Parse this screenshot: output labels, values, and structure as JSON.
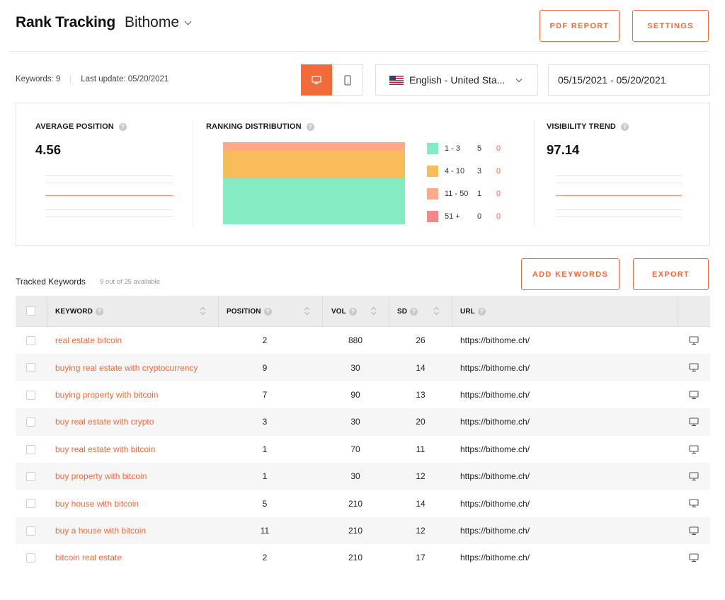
{
  "header": {
    "title": "Rank Tracking",
    "project": "Bithome",
    "pdf_report": "PDF REPORT",
    "settings": "SETTINGS"
  },
  "meta": {
    "keywords": "Keywords: 9",
    "last_update": "Last update: 05/20/2021"
  },
  "filters": {
    "device_selected": "desktop",
    "language": "English - United Sta...",
    "date_range": "05/15/2021 - 05/20/2021"
  },
  "stats": {
    "average_position": {
      "label": "AVERAGE POSITION",
      "value": "4.56"
    },
    "ranking_distribution": {
      "label": "RANKING DISTRIBUTION",
      "legend": [
        {
          "range": "1 - 3",
          "count": "5",
          "change": "0",
          "color": "#84ebc2"
        },
        {
          "range": "4 - 10",
          "count": "3",
          "change": "0",
          "color": "#f8bd5a"
        },
        {
          "range": "11 - 50",
          "count": "1",
          "change": "0",
          "color": "#fcaa87"
        },
        {
          "range": "51 +",
          "count": "0",
          "change": "0",
          "color": "#f78686"
        }
      ]
    },
    "visibility_trend": {
      "label": "VISIBILITY TREND",
      "value": "97.14"
    }
  },
  "tracked": {
    "label": "Tracked Keywords",
    "available": "9 out of 25 available",
    "add_keywords": "ADD KEYWORDS",
    "export": "EXPORT"
  },
  "table": {
    "columns": {
      "keyword": "KEYWORD",
      "position": "POSITION",
      "vol": "VOL",
      "sd": "SD",
      "url": "URL"
    },
    "rows": [
      {
        "keyword": "real estate bitcoin",
        "position": "2",
        "vol": "880",
        "sd": "26",
        "url": "https://bithome.ch/"
      },
      {
        "keyword": "buying real estate with cryptocurrency",
        "position": "9",
        "vol": "30",
        "sd": "14",
        "url": "https://bithome.ch/"
      },
      {
        "keyword": "buying property with bitcoin",
        "position": "7",
        "vol": "90",
        "sd": "13",
        "url": "https://bithome.ch/"
      },
      {
        "keyword": "buy real estate with crypto",
        "position": "3",
        "vol": "30",
        "sd": "20",
        "url": "https://bithome.ch/"
      },
      {
        "keyword": "buy real estate with bitcoin",
        "position": "1",
        "vol": "70",
        "sd": "11",
        "url": "https://bithome.ch/"
      },
      {
        "keyword": "buy property with bitcoin",
        "position": "1",
        "vol": "30",
        "sd": "12",
        "url": "https://bithome.ch/"
      },
      {
        "keyword": "buy house with bitcoin",
        "position": "5",
        "vol": "210",
        "sd": "14",
        "url": "https://bithome.ch/"
      },
      {
        "keyword": "buy a house with bitcoin",
        "position": "11",
        "vol": "210",
        "sd": "12",
        "url": "https://bithome.ch/"
      },
      {
        "keyword": "bitcoin real estate",
        "position": "2",
        "vol": "210",
        "sd": "17",
        "url": "https://bithome.ch/"
      }
    ]
  },
  "colors": {
    "accent": "#f36a3b",
    "header_bg": "#ececec",
    "row_alt_bg": "#f6f6f6"
  },
  "icons": [
    "chevron-down-icon",
    "desktop-icon",
    "mobile-icon",
    "us-flag-icon",
    "help-icon",
    "sort-icon",
    "checkbox",
    "monitor-icon"
  ]
}
